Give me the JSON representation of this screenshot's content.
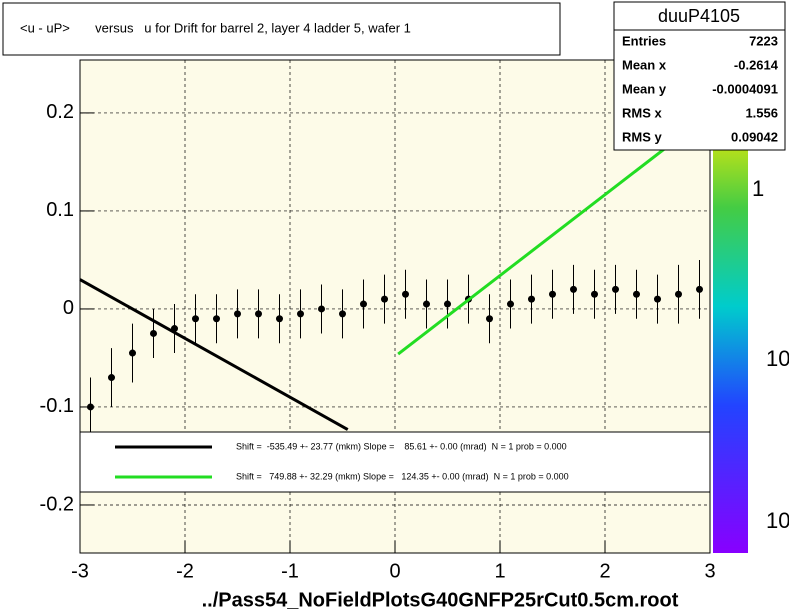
{
  "chart_data": {
    "type": "profile",
    "title": "<u - uP>       versus   u for Drift for barrel 2, layer 4 ladder 5, wafer 1",
    "xlim": [
      -3,
      3
    ],
    "xticks": [
      -3,
      -2,
      -1,
      0,
      1,
      2,
      3
    ],
    "ylim": [
      -0.249,
      0.254
    ],
    "yticks": [
      -0.2,
      -0.1,
      0,
      0.1,
      0.2
    ],
    "grid": true,
    "profile": {
      "color": "#000000",
      "x": [
        -2.9,
        -2.7,
        -2.5,
        -2.3,
        -2.1,
        -1.9,
        -1.7,
        -1.5,
        -1.3,
        -1.1,
        -0.9,
        -0.7,
        -0.5,
        -0.3,
        -0.1,
        0.1,
        0.3,
        0.5,
        0.7,
        0.9,
        1.1,
        1.3,
        1.5,
        1.7,
        1.9,
        2.1,
        2.3,
        2.5,
        2.7,
        2.9
      ],
      "values": [
        -0.1,
        -0.07,
        -0.045,
        -0.025,
        -0.02,
        -0.01,
        -0.01,
        -0.005,
        -0.005,
        -0.01,
        -0.005,
        0,
        -0.005,
        0.005,
        0.01,
        0.015,
        0.005,
        0.005,
        0.01,
        -0.01,
        0.005,
        0.01,
        0.015,
        0.02,
        0.015,
        0.02,
        0.015,
        0.01,
        0.015,
        0.02
      ],
      "errors": [
        0.03,
        0.03,
        0.03,
        0.025,
        0.025,
        0.025,
        0.025,
        0.025,
        0.025,
        0.025,
        0.025,
        0.025,
        0.025,
        0.025,
        0.025,
        0.025,
        0.025,
        0.025,
        0.025,
        0.025,
        0.025,
        0.025,
        0.025,
        0.025,
        0.025,
        0.025,
        0.025,
        0.025,
        0.03,
        0.03
      ]
    },
    "series": [
      {
        "name": "Shift =  -535.49 +- 23.77 (mkm) Slope =    85.61 +- 0.00 (mrad)  N = 1 prob = 0.000",
        "color": "#000000",
        "x": [
          -3,
          -0.45
        ],
        "values": [
          0.03,
          -0.123
        ]
      },
      {
        "name": "Shift =   749.88 +- 32.29 (mkm) Slope =   124.35 +- 0.00 (mrad)  N = 1 prob = 0.000",
        "color": "#22dd22",
        "x": [
          0.03,
          2.95
        ],
        "values": [
          -0.046,
          0.195
        ]
      }
    ],
    "stats": {
      "name": "duuP4105",
      "rows": [
        {
          "label": "Entries",
          "value": 7223
        },
        {
          "label": "Mean x",
          "value": -0.2614
        },
        {
          "label": "Mean y",
          "value": -0.0004091
        },
        {
          "label": "RMS x",
          "value": 1.556
        },
        {
          "label": "RMS y",
          "value": 0.09042
        }
      ]
    },
    "colorbar_labels": [
      "1",
      "10",
      "10"
    ],
    "footer": "../Pass54_NoFieldPlotsG40GNFP25rCut0.5cm.root"
  }
}
